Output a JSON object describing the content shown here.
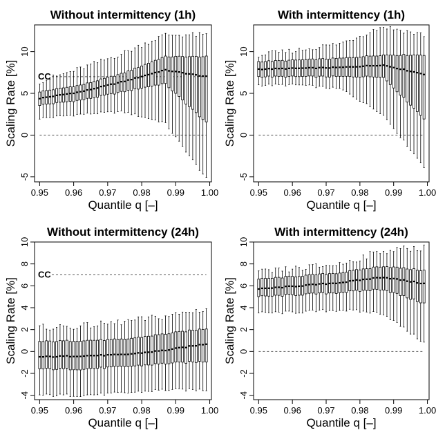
{
  "chart_data": [
    {
      "type": "box",
      "title": "Without intermittency (1h)",
      "xlabel": "Quantile q [–]",
      "ylabel": "Scaling Rate [%]",
      "xlim": [
        0.9485,
        1.0005
      ],
      "ylim": [
        -5.6,
        13.2
      ],
      "xticks": [
        "0.95",
        "0.96",
        "0.97",
        "0.98",
        "0.99",
        "1.00"
      ],
      "yticks": [
        "-5",
        "0",
        "5",
        "10"
      ],
      "reference_lines": [
        {
          "y": 7,
          "label": "CC"
        },
        {
          "y": 0,
          "label": ""
        }
      ],
      "boxes": {
        "q_start": 0.95,
        "q_end": 0.999,
        "count": 50,
        "median": [
          4.4,
          5.2,
          6.4,
          7.8,
          7.0
        ],
        "q1": [
          3.6,
          4.2,
          5.2,
          6.2,
          1.5
        ],
        "q3": [
          5.2,
          6.0,
          7.4,
          9.4,
          9.4
        ],
        "whisker_low": [
          2.0,
          2.5,
          2.8,
          1.5,
          -5.2
        ],
        "whisker_high": [
          6.4,
          8.0,
          9.8,
          12.0,
          12.0
        ]
      }
    },
    {
      "type": "box",
      "title": "With intermittency (1h)",
      "xlabel": "Quantile q [–]",
      "ylabel": "Scaling Rate [%]",
      "xlim": [
        0.9485,
        1.0005
      ],
      "ylim": [
        -5.6,
        13.2
      ],
      "xticks": [
        "0.95",
        "0.96",
        "0.97",
        "0.98",
        "0.99",
        "1.00"
      ],
      "yticks": [
        "-5",
        "0",
        "5",
        "10"
      ],
      "reference_lines": [
        {
          "y": 0,
          "label": ""
        }
      ],
      "boxes": {
        "q_start": 0.95,
        "q_end": 0.999,
        "count": 50,
        "median": [
          7.9,
          8.0,
          8.1,
          8.4,
          7.3
        ],
        "q1": [
          7.0,
          7.0,
          7.0,
          7.0,
          2.0
        ],
        "q3": [
          8.8,
          9.0,
          9.2,
          9.6,
          9.6
        ],
        "whisker_low": [
          6.0,
          6.0,
          5.5,
          2.5,
          -3.8
        ],
        "whisker_high": [
          9.6,
          10.2,
          11.0,
          13.0,
          12.0
        ]
      }
    },
    {
      "type": "box",
      "title": "Without intermittency (24h)",
      "xlabel": "Quantile q [–]",
      "ylabel": "Scaling Rate [%]",
      "xlim": [
        0.9485,
        1.0005
      ],
      "ylim": [
        -4.4,
        10.0
      ],
      "xticks": [
        "0.95",
        "0.96",
        "0.97",
        "0.98",
        "0.99",
        "1.00"
      ],
      "yticks": [
        "-4",
        "-2",
        "0",
        "2",
        "4",
        "6",
        "8",
        "10"
      ],
      "reference_lines": [
        {
          "y": 7,
          "label": "CC"
        }
      ],
      "boxes": {
        "q_start": 0.95,
        "q_end": 0.999,
        "count": 50,
        "median": [
          -0.5,
          -0.4,
          -0.3,
          0.1,
          0.7
        ],
        "q1": [
          -1.6,
          -1.6,
          -1.4,
          -1.1,
          -0.9
        ],
        "q3": [
          0.9,
          1.0,
          1.1,
          1.6,
          2.1
        ],
        "whisker_low": [
          -4.0,
          -4.0,
          -3.8,
          -3.5,
          -3.5
        ],
        "whisker_high": [
          2.2,
          2.3,
          2.7,
          3.2,
          3.9
        ]
      }
    },
    {
      "type": "box",
      "title": "With intermittency (24h)",
      "xlabel": "Quantile q [–]",
      "ylabel": "Scaling Rate [%]",
      "xlim": [
        0.9485,
        1.0005
      ],
      "ylim": [
        -4.4,
        10.0
      ],
      "xticks": [
        "0.95",
        "0.96",
        "0.97",
        "0.98",
        "0.99",
        "1.00"
      ],
      "yticks": [
        "-4",
        "-2",
        "0",
        "2",
        "4",
        "6",
        "8",
        "10"
      ],
      "reference_lines": [
        {
          "y": 0,
          "label": ""
        }
      ],
      "boxes": {
        "q_start": 0.95,
        "q_end": 0.999,
        "count": 50,
        "median": [
          5.7,
          6.0,
          6.3,
          6.8,
          6.2
        ],
        "q1": [
          5.0,
          5.2,
          5.4,
          5.7,
          4.4
        ],
        "q3": [
          6.6,
          6.9,
          7.2,
          7.8,
          7.4
        ],
        "whisker_low": [
          3.5,
          3.6,
          3.8,
          3.5,
          0.8
        ],
        "whisker_high": [
          7.2,
          7.6,
          8.0,
          9.2,
          9.5
        ]
      }
    }
  ]
}
